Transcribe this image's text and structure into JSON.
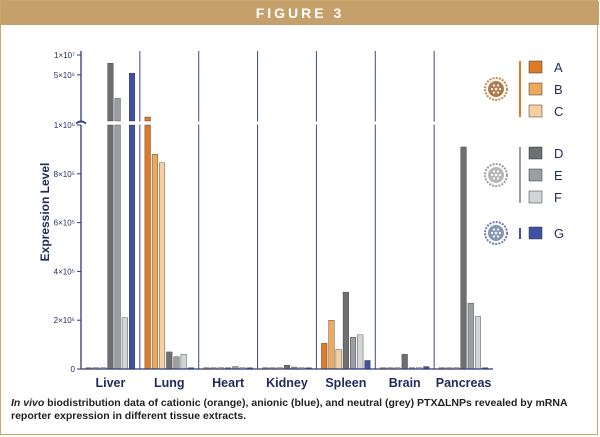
{
  "figure_label": "FIGURE 3",
  "caption": {
    "italic": "In vivo",
    "text": " biodistribution data of cationic (orange), anionic (blue), and neutral (grey) PTXΔLNPs revealed by mRNA reporter expression in different tissue extracts."
  },
  "colors": {
    "A": "#e07a24",
    "B": "#eea95a",
    "C": "#f6cfa0",
    "D": "#6d6f72",
    "E": "#9b9ea2",
    "F": "#d2d4d7",
    "G": "#3f51a3",
    "axis": "#2c3a78",
    "banner": "#c6a06a"
  },
  "legend": [
    {
      "key": "A",
      "icon": "cationic-lnp-icon"
    },
    {
      "key": "B",
      "icon": "cationic-lnp-icon"
    },
    {
      "key": "C",
      "icon": "cationic-lnp-icon"
    },
    {
      "key": "D",
      "icon": "neutral-lnp-icon"
    },
    {
      "key": "E",
      "icon": "neutral-lnp-icon"
    },
    {
      "key": "F",
      "icon": "neutral-lnp-icon"
    },
    {
      "key": "G",
      "icon": "anionic-lnp-icon"
    }
  ],
  "chart_data": {
    "type": "bar",
    "ylabel": "Expression Level",
    "xlabel": "",
    "broken_y_axis": true,
    "lower_ylim": [
      0,
      1000000
    ],
    "upper_ylim": [
      1000000,
      10000000
    ],
    "upper_scale": "log",
    "lower_ticks": [
      "0",
      "2×10⁵",
      "4×10⁵",
      "6×10⁵",
      "8×10⁵",
      "1×10⁶"
    ],
    "upper_ticks": [
      "5×10⁶",
      "1×10⁷"
    ],
    "categories": [
      "Liver",
      "Lung",
      "Heart",
      "Kidney",
      "Spleen",
      "Brain",
      "Pancreas"
    ],
    "series": [
      {
        "name": "A",
        "values": [
          3000,
          1150000,
          2000,
          1000,
          105000,
          2000,
          3000
        ]
      },
      {
        "name": "B",
        "values": [
          2000,
          880000,
          1000,
          1000,
          200000,
          1000,
          2000
        ]
      },
      {
        "name": "C",
        "values": [
          1000,
          845000,
          1000,
          1000,
          80000,
          1000,
          1000
        ]
      },
      {
        "name": "D",
        "values": [
          7500000,
          70000,
          5000,
          15000,
          315000,
          60000,
          910000
        ]
      },
      {
        "name": "E",
        "values": [
          2200000,
          50000,
          10000,
          8000,
          130000,
          5000,
          270000
        ]
      },
      {
        "name": "F",
        "values": [
          210000,
          60000,
          3000,
          5000,
          140000,
          5000,
          215000
        ]
      },
      {
        "name": "G",
        "values": [
          5300000,
          5000,
          2000,
          1000,
          35000,
          10000,
          3000
        ]
      }
    ],
    "grid": false,
    "legend_position": "right"
  }
}
